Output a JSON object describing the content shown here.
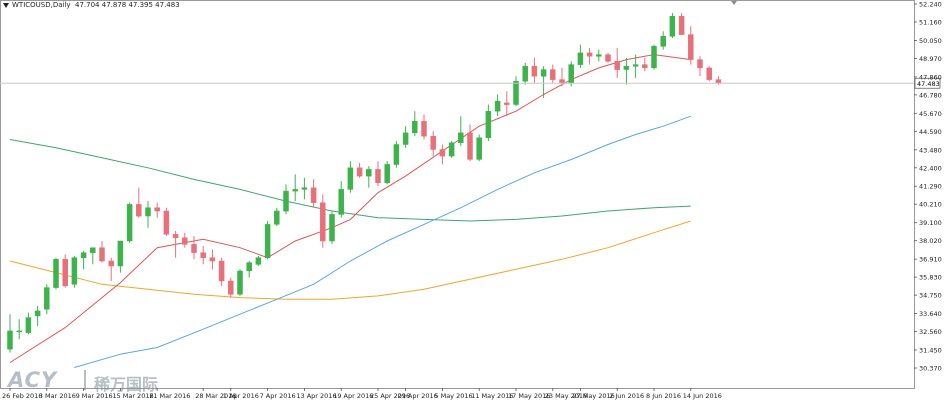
{
  "header": {
    "symbol": "WTICOUSD,Daily",
    "ohlc": "47.704 47.878 47.395 47.483"
  },
  "watermark": {
    "brand": "ACY",
    "brand_cn": "稀万国际"
  },
  "colors": {
    "bull": "#3cb44b",
    "bear": "#e8707a",
    "ma_red": "#e05656",
    "ma_blue": "#5aa7e0",
    "ma_green": "#3aa870",
    "ma_orange": "#f5a623",
    "price_line": "#c8c8c8"
  },
  "chart_data": {
    "type": "candlestick",
    "title": "WTICOUSD,Daily",
    "y_ticks": [
      "52.240",
      "51.160",
      "50.050",
      "48.970",
      "47.860",
      "46.780",
      "45.670",
      "44.590",
      "43.480",
      "42.400",
      "41.290",
      "40.210",
      "39.100",
      "38.020",
      "36.910",
      "35.830",
      "34.750",
      "33.640",
      "32.560",
      "31.450",
      "30.370"
    ],
    "ylim": [
      30.37,
      52.24
    ],
    "current_price": "47.483",
    "x_tick_labels": [
      "26 Feb 2016",
      "3 Mar 2016",
      "9 Mar 2016",
      "15 Mar 2016",
      "21 Mar 2016",
      "28 Mar 2016",
      "1 Apr 2016",
      "7 Apr 2016",
      "13 Apr 2016",
      "19 Apr 2016",
      "25 Apr 2016",
      "29 Apr 2016",
      "5 May 2016",
      "11 May 2016",
      "17 May 2016",
      "23 May 2016",
      "27 May 2016",
      "2 Jun 2016",
      "8 Jun 2016",
      "14 Jun 2016"
    ],
    "x_tick_bar_index": [
      0,
      4,
      8,
      12,
      16,
      21,
      24,
      28,
      32,
      36,
      40,
      43,
      47,
      51,
      55,
      59,
      62,
      66,
      70,
      74
    ],
    "candles": [
      {
        "o": 31.5,
        "h": 33.6,
        "l": 31.3,
        "c": 32.6
      },
      {
        "o": 32.6,
        "h": 33.3,
        "l": 32.1,
        "c": 32.6
      },
      {
        "o": 32.5,
        "h": 33.7,
        "l": 32.4,
        "c": 33.4
      },
      {
        "o": 33.5,
        "h": 34.1,
        "l": 32.9,
        "c": 33.8
      },
      {
        "o": 33.9,
        "h": 35.4,
        "l": 33.6,
        "c": 35.2
      },
      {
        "o": 35.2,
        "h": 37.0,
        "l": 35.1,
        "c": 36.9
      },
      {
        "o": 36.9,
        "h": 37.2,
        "l": 35.2,
        "c": 35.3
      },
      {
        "o": 35.4,
        "h": 37.1,
        "l": 35.2,
        "c": 37.0
      },
      {
        "o": 37.0,
        "h": 37.4,
        "l": 36.3,
        "c": 37.3
      },
      {
        "o": 37.3,
        "h": 37.6,
        "l": 36.6,
        "c": 37.6
      },
      {
        "o": 37.6,
        "h": 38.0,
        "l": 36.7,
        "c": 36.8
      },
      {
        "o": 36.8,
        "h": 37.0,
        "l": 35.6,
        "c": 36.5
      },
      {
        "o": 36.5,
        "h": 38.0,
        "l": 36.1,
        "c": 38.0
      },
      {
        "o": 38.0,
        "h": 40.3,
        "l": 37.9,
        "c": 40.2
      },
      {
        "o": 40.2,
        "h": 41.2,
        "l": 39.4,
        "c": 39.5
      },
      {
        "o": 39.5,
        "h": 40.4,
        "l": 38.8,
        "c": 40.0
      },
      {
        "o": 40.0,
        "h": 40.3,
        "l": 39.4,
        "c": 39.8
      },
      {
        "o": 39.8,
        "h": 40.0,
        "l": 38.3,
        "c": 38.4
      },
      {
        "o": 38.4,
        "h": 38.6,
        "l": 37.0,
        "c": 38.2
      },
      {
        "o": 38.2,
        "h": 38.5,
        "l": 37.6,
        "c": 37.8
      },
      {
        "o": 37.8,
        "h": 38.3,
        "l": 36.9,
        "c": 37.3
      },
      {
        "o": 37.3,
        "h": 37.7,
        "l": 36.6,
        "c": 37.0
      },
      {
        "o": 37.0,
        "h": 37.5,
        "l": 36.3,
        "c": 36.8
      },
      {
        "o": 36.8,
        "h": 37.0,
        "l": 35.3,
        "c": 35.6
      },
      {
        "o": 35.6,
        "h": 35.8,
        "l": 34.6,
        "c": 34.8
      },
      {
        "o": 34.8,
        "h": 36.3,
        "l": 34.7,
        "c": 36.2
      },
      {
        "o": 36.2,
        "h": 36.8,
        "l": 35.8,
        "c": 36.7
      },
      {
        "o": 36.6,
        "h": 37.1,
        "l": 36.5,
        "c": 37.0
      },
      {
        "o": 37.0,
        "h": 39.2,
        "l": 36.9,
        "c": 39.0
      },
      {
        "o": 39.0,
        "h": 40.0,
        "l": 38.9,
        "c": 39.8
      },
      {
        "o": 39.8,
        "h": 41.4,
        "l": 39.6,
        "c": 41.0
      },
      {
        "o": 41.0,
        "h": 42.0,
        "l": 40.4,
        "c": 41.1
      },
      {
        "o": 41.1,
        "h": 41.8,
        "l": 40.5,
        "c": 41.2
      },
      {
        "o": 41.2,
        "h": 41.7,
        "l": 40.0,
        "c": 40.3
      },
      {
        "o": 40.3,
        "h": 40.8,
        "l": 37.6,
        "c": 38.0
      },
      {
        "o": 38.0,
        "h": 39.8,
        "l": 37.8,
        "c": 39.6
      },
      {
        "o": 39.6,
        "h": 41.6,
        "l": 39.4,
        "c": 41.1
      },
      {
        "o": 41.1,
        "h": 42.8,
        "l": 40.9,
        "c": 42.4
      },
      {
        "o": 42.4,
        "h": 42.7,
        "l": 41.8,
        "c": 41.9
      },
      {
        "o": 41.9,
        "h": 42.5,
        "l": 41.2,
        "c": 42.3
      },
      {
        "o": 42.3,
        "h": 42.8,
        "l": 41.3,
        "c": 41.5
      },
      {
        "o": 41.5,
        "h": 42.8,
        "l": 41.4,
        "c": 42.6
      },
      {
        "o": 42.6,
        "h": 44.0,
        "l": 42.4,
        "c": 43.8
      },
      {
        "o": 43.8,
        "h": 44.9,
        "l": 43.6,
        "c": 44.5
      },
      {
        "o": 44.5,
        "h": 45.8,
        "l": 44.3,
        "c": 45.2
      },
      {
        "o": 45.2,
        "h": 45.6,
        "l": 44.1,
        "c": 44.3
      },
      {
        "o": 44.3,
        "h": 44.6,
        "l": 43.1,
        "c": 43.5
      },
      {
        "o": 43.5,
        "h": 43.8,
        "l": 42.6,
        "c": 43.1
      },
      {
        "o": 43.1,
        "h": 44.0,
        "l": 43.0,
        "c": 43.9
      },
      {
        "o": 43.9,
        "h": 45.5,
        "l": 43.7,
        "c": 44.5
      },
      {
        "o": 44.5,
        "h": 45.0,
        "l": 42.8,
        "c": 42.9
      },
      {
        "o": 42.9,
        "h": 44.4,
        "l": 42.8,
        "c": 44.2
      },
      {
        "o": 44.2,
        "h": 46.2,
        "l": 44.0,
        "c": 45.8
      },
      {
        "o": 45.8,
        "h": 46.8,
        "l": 45.5,
        "c": 46.4
      },
      {
        "o": 46.3,
        "h": 47.0,
        "l": 45.5,
        "c": 46.2
      },
      {
        "o": 46.2,
        "h": 47.9,
        "l": 46.1,
        "c": 47.6
      },
      {
        "o": 47.6,
        "h": 48.7,
        "l": 47.4,
        "c": 48.5
      },
      {
        "o": 48.5,
        "h": 49.0,
        "l": 47.5,
        "c": 47.9
      },
      {
        "o": 47.9,
        "h": 48.5,
        "l": 46.6,
        "c": 48.3
      },
      {
        "o": 48.3,
        "h": 48.6,
        "l": 47.5,
        "c": 47.7
      },
      {
        "o": 47.7,
        "h": 48.4,
        "l": 47.3,
        "c": 47.5
      },
      {
        "o": 47.5,
        "h": 48.8,
        "l": 47.3,
        "c": 48.6
      },
      {
        "o": 48.6,
        "h": 49.8,
        "l": 48.4,
        "c": 49.3
      },
      {
        "o": 49.3,
        "h": 49.6,
        "l": 48.6,
        "c": 49.1
      },
      {
        "o": 49.1,
        "h": 49.5,
        "l": 48.8,
        "c": 49.2
      },
      {
        "o": 49.2,
        "h": 49.3,
        "l": 48.7,
        "c": 48.8
      },
      {
        "o": 48.8,
        "h": 49.6,
        "l": 47.8,
        "c": 48.3
      },
      {
        "o": 48.3,
        "h": 49.0,
        "l": 47.4,
        "c": 48.5
      },
      {
        "o": 48.5,
        "h": 49.2,
        "l": 47.8,
        "c": 48.6
      },
      {
        "o": 48.6,
        "h": 49.0,
        "l": 48.2,
        "c": 48.4
      },
      {
        "o": 48.4,
        "h": 49.8,
        "l": 48.3,
        "c": 49.7
      },
      {
        "o": 49.7,
        "h": 50.6,
        "l": 49.5,
        "c": 50.3
      },
      {
        "o": 50.3,
        "h": 51.7,
        "l": 50.2,
        "c": 51.5
      },
      {
        "o": 51.5,
        "h": 51.7,
        "l": 50.4,
        "c": 50.4
      },
      {
        "o": 50.4,
        "h": 50.9,
        "l": 48.6,
        "c": 48.9
      },
      {
        "o": 48.9,
        "h": 49.1,
        "l": 47.9,
        "c": 48.4
      },
      {
        "o": 48.4,
        "h": 48.5,
        "l": 47.6,
        "c": 47.7
      },
      {
        "o": 47.7,
        "h": 47.9,
        "l": 47.4,
        "c": 47.5
      }
    ],
    "ma_red": [
      [
        0,
        30.7
      ],
      [
        6,
        32.8
      ],
      [
        12,
        35.5
      ],
      [
        16,
        37.6
      ],
      [
        21,
        38.1
      ],
      [
        25,
        37.6
      ],
      [
        28,
        37.0
      ],
      [
        31,
        38.0
      ],
      [
        35,
        38.8
      ],
      [
        37,
        39.3
      ],
      [
        40,
        40.9
      ],
      [
        43,
        41.9
      ],
      [
        47,
        43.4
      ],
      [
        51,
        44.9
      ],
      [
        55,
        45.8
      ],
      [
        58,
        46.8
      ],
      [
        61,
        47.7
      ],
      [
        64,
        48.4
      ],
      [
        67,
        48.9
      ],
      [
        70,
        49.2
      ],
      [
        74,
        48.9
      ]
    ],
    "ma_blue": [
      [
        7,
        30.4
      ],
      [
        12,
        31.2
      ],
      [
        16,
        31.6
      ],
      [
        21,
        32.7
      ],
      [
        25,
        33.6
      ],
      [
        29,
        34.5
      ],
      [
        33,
        35.4
      ],
      [
        37,
        36.8
      ],
      [
        41,
        38.0
      ],
      [
        45,
        39.0
      ],
      [
        49,
        40.0
      ],
      [
        53,
        41.1
      ],
      [
        57,
        42.1
      ],
      [
        61,
        42.9
      ],
      [
        65,
        43.8
      ],
      [
        68,
        44.4
      ],
      [
        71,
        44.9
      ],
      [
        74,
        45.5
      ]
    ],
    "ma_green": [
      [
        0,
        44.1
      ],
      [
        5,
        43.6
      ],
      [
        10,
        43.0
      ],
      [
        15,
        42.4
      ],
      [
        20,
        41.7
      ],
      [
        25,
        41.1
      ],
      [
        30,
        40.4
      ],
      [
        35,
        39.8
      ],
      [
        40,
        39.4
      ],
      [
        45,
        39.3
      ],
      [
        50,
        39.2
      ],
      [
        55,
        39.3
      ],
      [
        60,
        39.5
      ],
      [
        65,
        39.8
      ],
      [
        70,
        40.0
      ],
      [
        74,
        40.1
      ]
    ],
    "ma_orange": [
      [
        0,
        36.8
      ],
      [
        5,
        36.1
      ],
      [
        10,
        35.4
      ],
      [
        15,
        35.1
      ],
      [
        20,
        34.8
      ],
      [
        25,
        34.6
      ],
      [
        30,
        34.5
      ],
      [
        35,
        34.5
      ],
      [
        40,
        34.7
      ],
      [
        45,
        35.1
      ],
      [
        50,
        35.7
      ],
      [
        55,
        36.3
      ],
      [
        60,
        36.9
      ],
      [
        65,
        37.6
      ],
      [
        70,
        38.5
      ],
      [
        74,
        39.2
      ]
    ]
  }
}
